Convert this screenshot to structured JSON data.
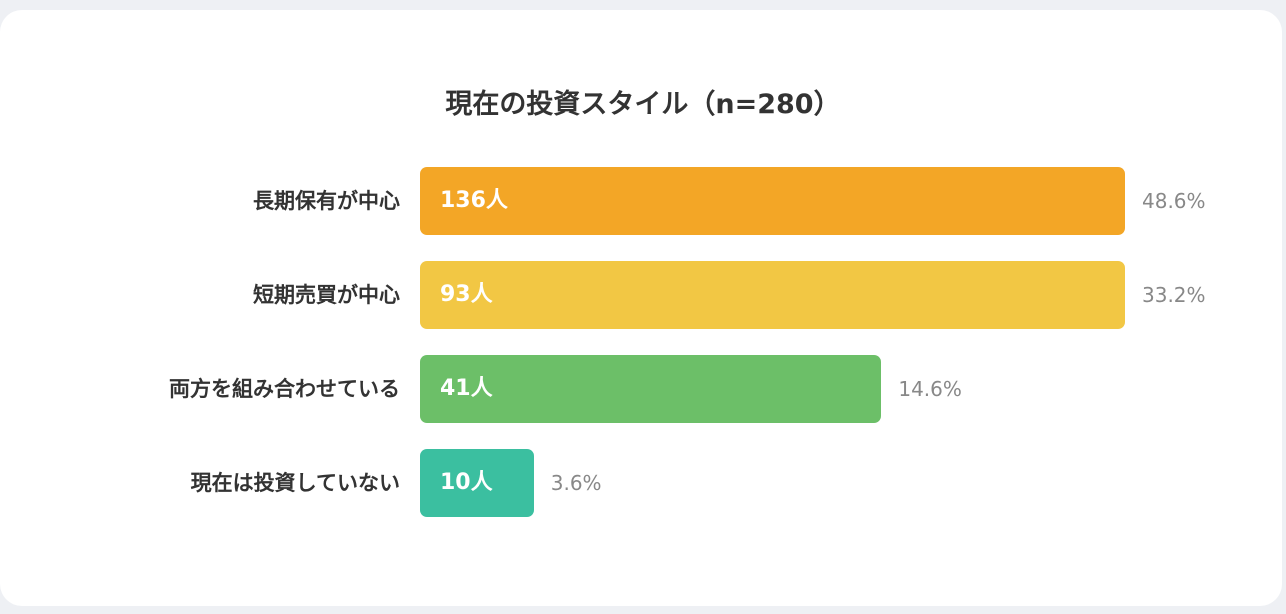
{
  "chart_data": {
    "type": "bar",
    "orientation": "horizontal",
    "title": "現在の投資スタイル（n=280）",
    "categories": [
      "長期保有が中心",
      "短期売買が中心",
      "両方を組み合わせている",
      "現在は投資していない"
    ],
    "values": [
      136,
      93,
      41,
      10
    ],
    "value_labels": [
      "136人",
      "93人",
      "41人",
      "10人"
    ],
    "percentages": [
      48.6,
      33.2,
      14.6,
      3.6
    ],
    "percentage_labels": [
      "48.6%",
      "33.2%",
      "14.6%",
      "3.6%"
    ],
    "colors": [
      "#f3a626",
      "#f2c744",
      "#6cbf68",
      "#3bbfa0"
    ],
    "grid": false,
    "legend": "none"
  }
}
